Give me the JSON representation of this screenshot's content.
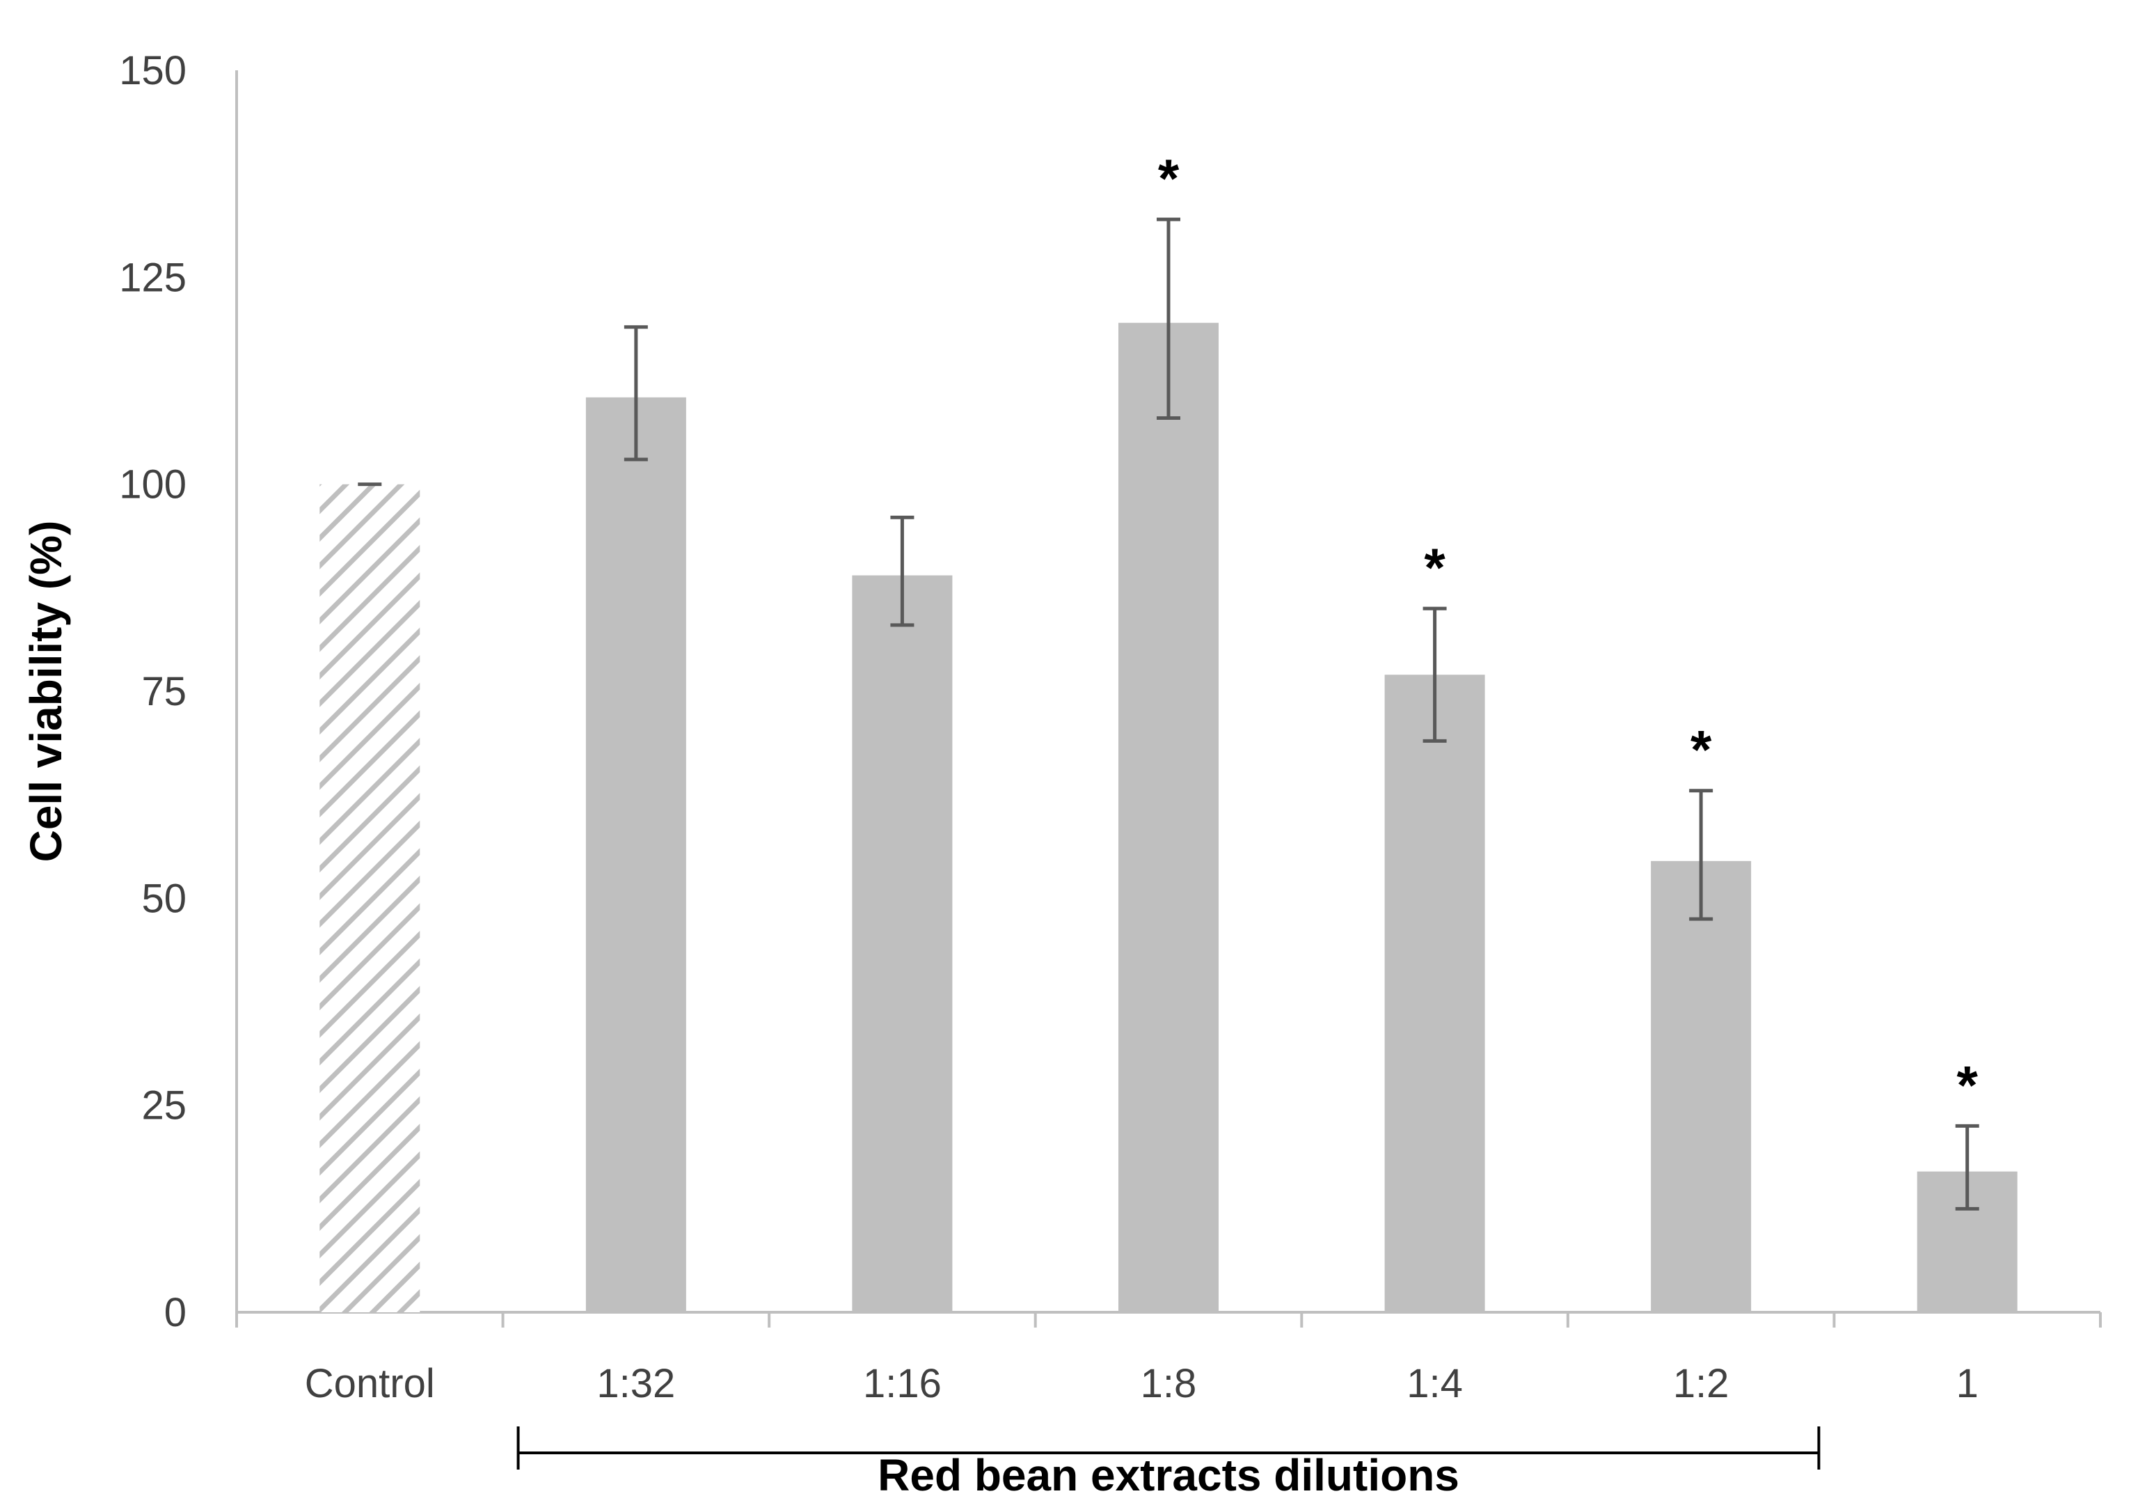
{
  "chart_data": {
    "type": "bar",
    "title": "",
    "xlabel": "",
    "ylabel": "Cell viability (%)",
    "ylim": [
      0,
      150
    ],
    "yticks": [
      0,
      25,
      50,
      75,
      100,
      125,
      150
    ],
    "ytick_labels": [
      "0",
      "25",
      "50",
      "75",
      "100",
      "125",
      "150"
    ],
    "grid": false,
    "categories": [
      "Control",
      "1:32",
      "1:16",
      "1:8",
      "1:4",
      "1:2",
      "1"
    ],
    "series": [
      {
        "name": "Cell viability",
        "values": [
          100,
          110.5,
          89,
          119.5,
          77,
          54.5,
          17
        ],
        "error_low": [
          100,
          103,
          83,
          108,
          69,
          47.5,
          12.5
        ],
        "error_high": [
          100,
          119,
          96,
          132,
          85,
          63,
          22.5
        ],
        "significant": [
          false,
          false,
          false,
          true,
          true,
          true,
          true
        ],
        "hatched": [
          true,
          false,
          false,
          false,
          false,
          false,
          false
        ]
      }
    ],
    "significance_marker": "*",
    "group_bracket": {
      "label": "Red bean extracts dilutions",
      "from_category": "1:32",
      "to_category": "1:2"
    },
    "colors": {
      "bar_fill": "#bfbfbf",
      "hatch_stroke": "#bfbfbf",
      "error_bar": "#595959",
      "axis": "#bfbfbf",
      "bracket": "#000000"
    }
  }
}
